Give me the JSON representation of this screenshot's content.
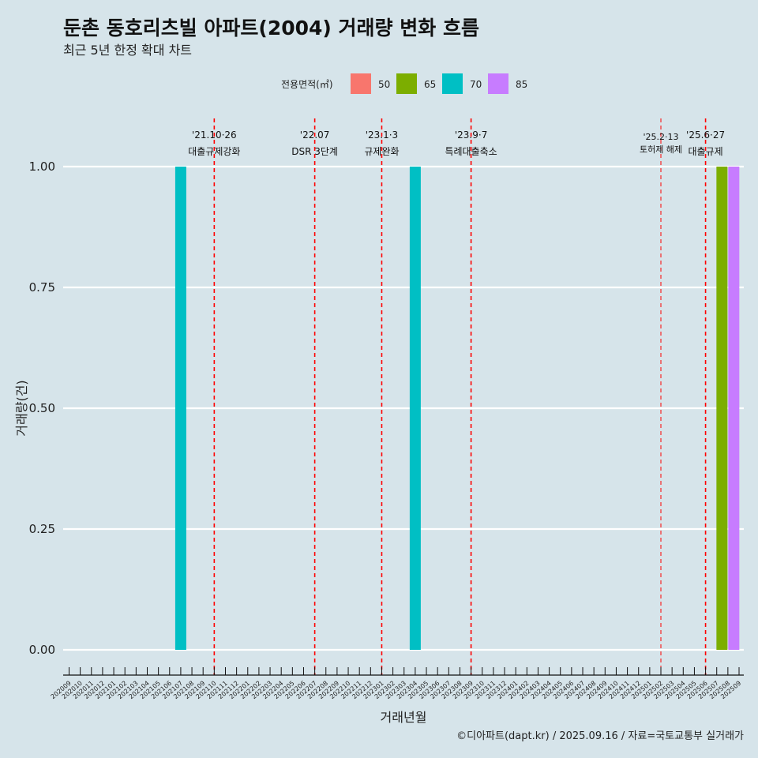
{
  "title": "둔촌 동호리츠빌 아파트(2004) 거래량 변화 흐름",
  "subtitle": "최근 5년 한정 확대 차트",
  "caption": "©디아파트(dapt.kr) / 2025.09.16 / 자료=국토교통부 실거래가",
  "legend": {
    "title": "전용면적(㎡)",
    "items": [
      {
        "label": "50",
        "color": "#f8766d"
      },
      {
        "label": "65",
        "color": "#7cae00"
      },
      {
        "label": "70",
        "color": "#00bfc4"
      },
      {
        "label": "85",
        "color": "#c77cff"
      }
    ]
  },
  "chart_data": {
    "type": "bar",
    "xlabel": "거래년월",
    "ylabel": "거래량(건)",
    "ylim": [
      0,
      1
    ],
    "yticks": [
      "0.00",
      "0.25",
      "0.50",
      "0.75",
      "1.00"
    ],
    "categories": [
      "202009",
      "202010",
      "202011",
      "202012",
      "202101",
      "202102",
      "202103",
      "202104",
      "202105",
      "202106",
      "202107",
      "202108",
      "202109",
      "202110",
      "202111",
      "202112",
      "202201",
      "202202",
      "202203",
      "202204",
      "202205",
      "202206",
      "202207",
      "202208",
      "202209",
      "202210",
      "202211",
      "202212",
      "202301",
      "202302",
      "202303",
      "202304",
      "202305",
      "202306",
      "202307",
      "202308",
      "202309",
      "202310",
      "202311",
      "202312",
      "202401",
      "202402",
      "202403",
      "202404",
      "202405",
      "202406",
      "202407",
      "202408",
      "202409",
      "202410",
      "202411",
      "202412",
      "202501",
      "202502",
      "202503",
      "202504",
      "202505",
      "202506",
      "202507",
      "202508",
      "202509"
    ],
    "bars": [
      {
        "month": "202107",
        "area": "70",
        "value": 1
      },
      {
        "month": "202304",
        "area": "70",
        "value": 1
      },
      {
        "month": "202508",
        "area": "65",
        "value": 1
      },
      {
        "month": "202508",
        "area": "85",
        "value": 1
      }
    ],
    "events": [
      {
        "month": "202110",
        "date": "'21.10·26",
        "label": "대출규제강화"
      },
      {
        "month": "202207",
        "date": "'22.07",
        "label": "DSR 3단계"
      },
      {
        "month": "202301",
        "date": "'23.1·3",
        "label": "규제완화"
      },
      {
        "month": "202309",
        "date": "'23.9·7",
        "label": "특례대출축소"
      },
      {
        "month": "202502",
        "date": "'25.2·13",
        "label": "토허제 해제"
      },
      {
        "month": "202506",
        "date": "'25.6·27",
        "label": "대출규제"
      }
    ]
  }
}
